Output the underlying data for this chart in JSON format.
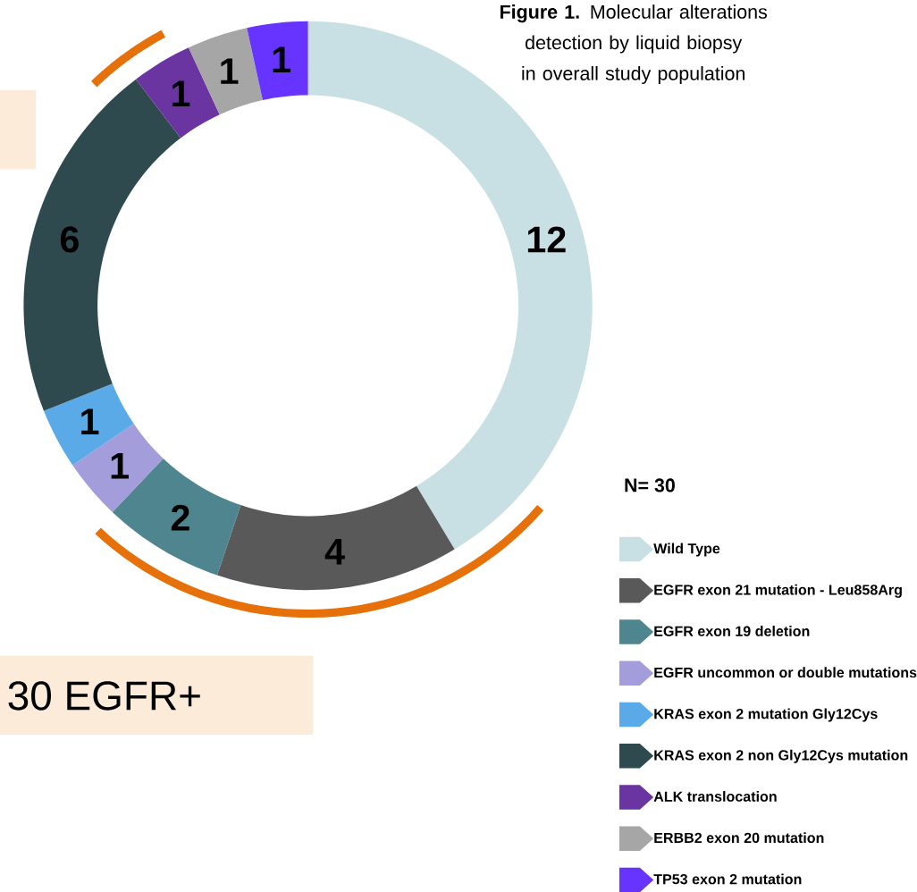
{
  "chart_data": {
    "type": "donut",
    "title": "**Figure 1.** Molecular alterations detection by liquid biopsy in overall study population",
    "legend_title": "N= 30",
    "categories": [
      "Wild Type",
      "EGFR exon 21 mutation - Leu858Arg",
      "EGFR exon 19 deletion",
      "EGFR uncommon or double mutations",
      "KRAS exon 2 mutation Gly12Cys",
      "KRAS exon 2 non Gly12Cys mutation",
      "ALK translocation",
      "ERBB2 exon 20 mutation",
      "TP53 exon 2 mutation"
    ],
    "values": [
      12,
      4,
      2,
      1,
      1,
      6,
      1,
      1,
      1
    ],
    "colors": [
      "#c8dfe3",
      "#595959",
      "#4f858e",
      "#a39ddc",
      "#5aaae8",
      "#2f4a4f",
      "#6a35a0",
      "#a6a6a6",
      "#6633ff"
    ],
    "data_labels": true,
    "legend": "bottom right",
    "annotations": [
      "30 EGFR+"
    ]
  }
}
